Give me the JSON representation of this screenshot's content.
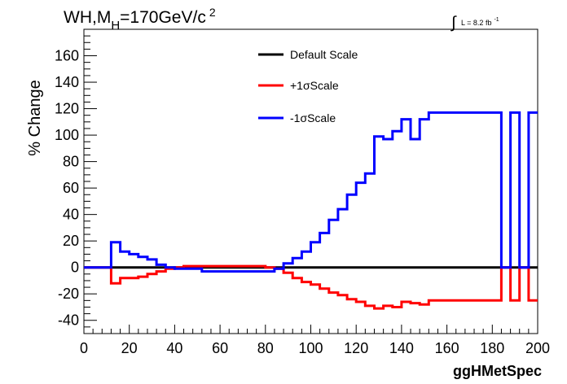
{
  "title_main": "WH,M",
  "title_sub": "H",
  "title_rest": "=170GeV/c",
  "title_sup": "2",
  "lumi_text": "L = 8.2 fb",
  "lumi_sup": "-1",
  "chart_data": {
    "type": "line",
    "title": "WH,MH=170GeV/c2",
    "xlabel": "ggHMetSpec",
    "ylabel": "% Change",
    "xlim": [
      0,
      200
    ],
    "ylim": [
      -50,
      180
    ],
    "x_ticks": [
      0,
      20,
      40,
      60,
      80,
      100,
      120,
      140,
      160,
      180,
      200
    ],
    "y_ticks": [
      -40,
      -20,
      0,
      20,
      40,
      60,
      80,
      100,
      120,
      140,
      160
    ],
    "grid": false,
    "legend_position": "top-center",
    "series": [
      {
        "name": "Default Scale",
        "color": "#000000",
        "points": [
          [
            0,
            0
          ],
          [
            200,
            0
          ]
        ]
      },
      {
        "name": "+1σScale",
        "color": "#ff0000",
        "points": [
          [
            0,
            0
          ],
          [
            12,
            0
          ],
          [
            12,
            -12
          ],
          [
            16,
            -12
          ],
          [
            16,
            -8
          ],
          [
            24,
            -8
          ],
          [
            24,
            -7
          ],
          [
            28,
            -7
          ],
          [
            28,
            -5
          ],
          [
            32,
            -5
          ],
          [
            32,
            -3
          ],
          [
            36,
            -3
          ],
          [
            36,
            -1
          ],
          [
            40,
            -1
          ],
          [
            40,
            0
          ],
          [
            44,
            0
          ],
          [
            44,
            1
          ],
          [
            80,
            1
          ],
          [
            80,
            0
          ],
          [
            84,
            0
          ],
          [
            84,
            -1
          ],
          [
            88,
            -1
          ],
          [
            88,
            -4
          ],
          [
            92,
            -4
          ],
          [
            92,
            -8
          ],
          [
            96,
            -8
          ],
          [
            96,
            -11
          ],
          [
            100,
            -11
          ],
          [
            100,
            -13
          ],
          [
            104,
            -13
          ],
          [
            104,
            -16
          ],
          [
            108,
            -16
          ],
          [
            108,
            -19
          ],
          [
            112,
            -19
          ],
          [
            112,
            -21
          ],
          [
            116,
            -21
          ],
          [
            116,
            -24
          ],
          [
            120,
            -24
          ],
          [
            120,
            -26
          ],
          [
            124,
            -26
          ],
          [
            124,
            -29
          ],
          [
            128,
            -29
          ],
          [
            128,
            -31
          ],
          [
            132,
            -31
          ],
          [
            132,
            -29
          ],
          [
            136,
            -29
          ],
          [
            136,
            -30
          ],
          [
            140,
            -30
          ],
          [
            140,
            -26
          ],
          [
            144,
            -26
          ],
          [
            144,
            -27
          ],
          [
            148,
            -27
          ],
          [
            148,
            -28
          ],
          [
            152,
            -28
          ],
          [
            152,
            -25
          ],
          [
            184,
            -25
          ],
          [
            184,
            0
          ],
          [
            188,
            0
          ],
          [
            188,
            -25
          ],
          [
            192,
            -25
          ],
          [
            192,
            0
          ],
          [
            196,
            0
          ],
          [
            196,
            -25
          ],
          [
            200,
            -25
          ]
        ]
      },
      {
        "name": "-1σScale",
        "color": "#0000ff",
        "points": [
          [
            0,
            0
          ],
          [
            12,
            0
          ],
          [
            12,
            19
          ],
          [
            16,
            19
          ],
          [
            16,
            12
          ],
          [
            20,
            12
          ],
          [
            20,
            10
          ],
          [
            24,
            10
          ],
          [
            24,
            8
          ],
          [
            28,
            8
          ],
          [
            28,
            6
          ],
          [
            32,
            6
          ],
          [
            32,
            2
          ],
          [
            36,
            2
          ],
          [
            36,
            0
          ],
          [
            40,
            0
          ],
          [
            40,
            -1
          ],
          [
            52,
            -1
          ],
          [
            52,
            -3
          ],
          [
            84,
            -3
          ],
          [
            84,
            -1
          ],
          [
            88,
            -1
          ],
          [
            88,
            3
          ],
          [
            92,
            3
          ],
          [
            92,
            7
          ],
          [
            96,
            7
          ],
          [
            96,
            12
          ],
          [
            100,
            12
          ],
          [
            100,
            19
          ],
          [
            104,
            19
          ],
          [
            104,
            26
          ],
          [
            108,
            26
          ],
          [
            108,
            36
          ],
          [
            112,
            36
          ],
          [
            112,
            44
          ],
          [
            116,
            44
          ],
          [
            116,
            55
          ],
          [
            120,
            55
          ],
          [
            120,
            64
          ],
          [
            124,
            64
          ],
          [
            124,
            71
          ],
          [
            128,
            71
          ],
          [
            128,
            99
          ],
          [
            132,
            99
          ],
          [
            132,
            97
          ],
          [
            136,
            97
          ],
          [
            136,
            103
          ],
          [
            140,
            103
          ],
          [
            140,
            112
          ],
          [
            144,
            112
          ],
          [
            144,
            97
          ],
          [
            148,
            97
          ],
          [
            148,
            112
          ],
          [
            152,
            112
          ],
          [
            152,
            117
          ],
          [
            184,
            117
          ],
          [
            184,
            0
          ],
          [
            188,
            0
          ],
          [
            188,
            117
          ],
          [
            192,
            117
          ],
          [
            192,
            0
          ],
          [
            196,
            0
          ],
          [
            196,
            117
          ],
          [
            200,
            117
          ]
        ]
      }
    ]
  }
}
